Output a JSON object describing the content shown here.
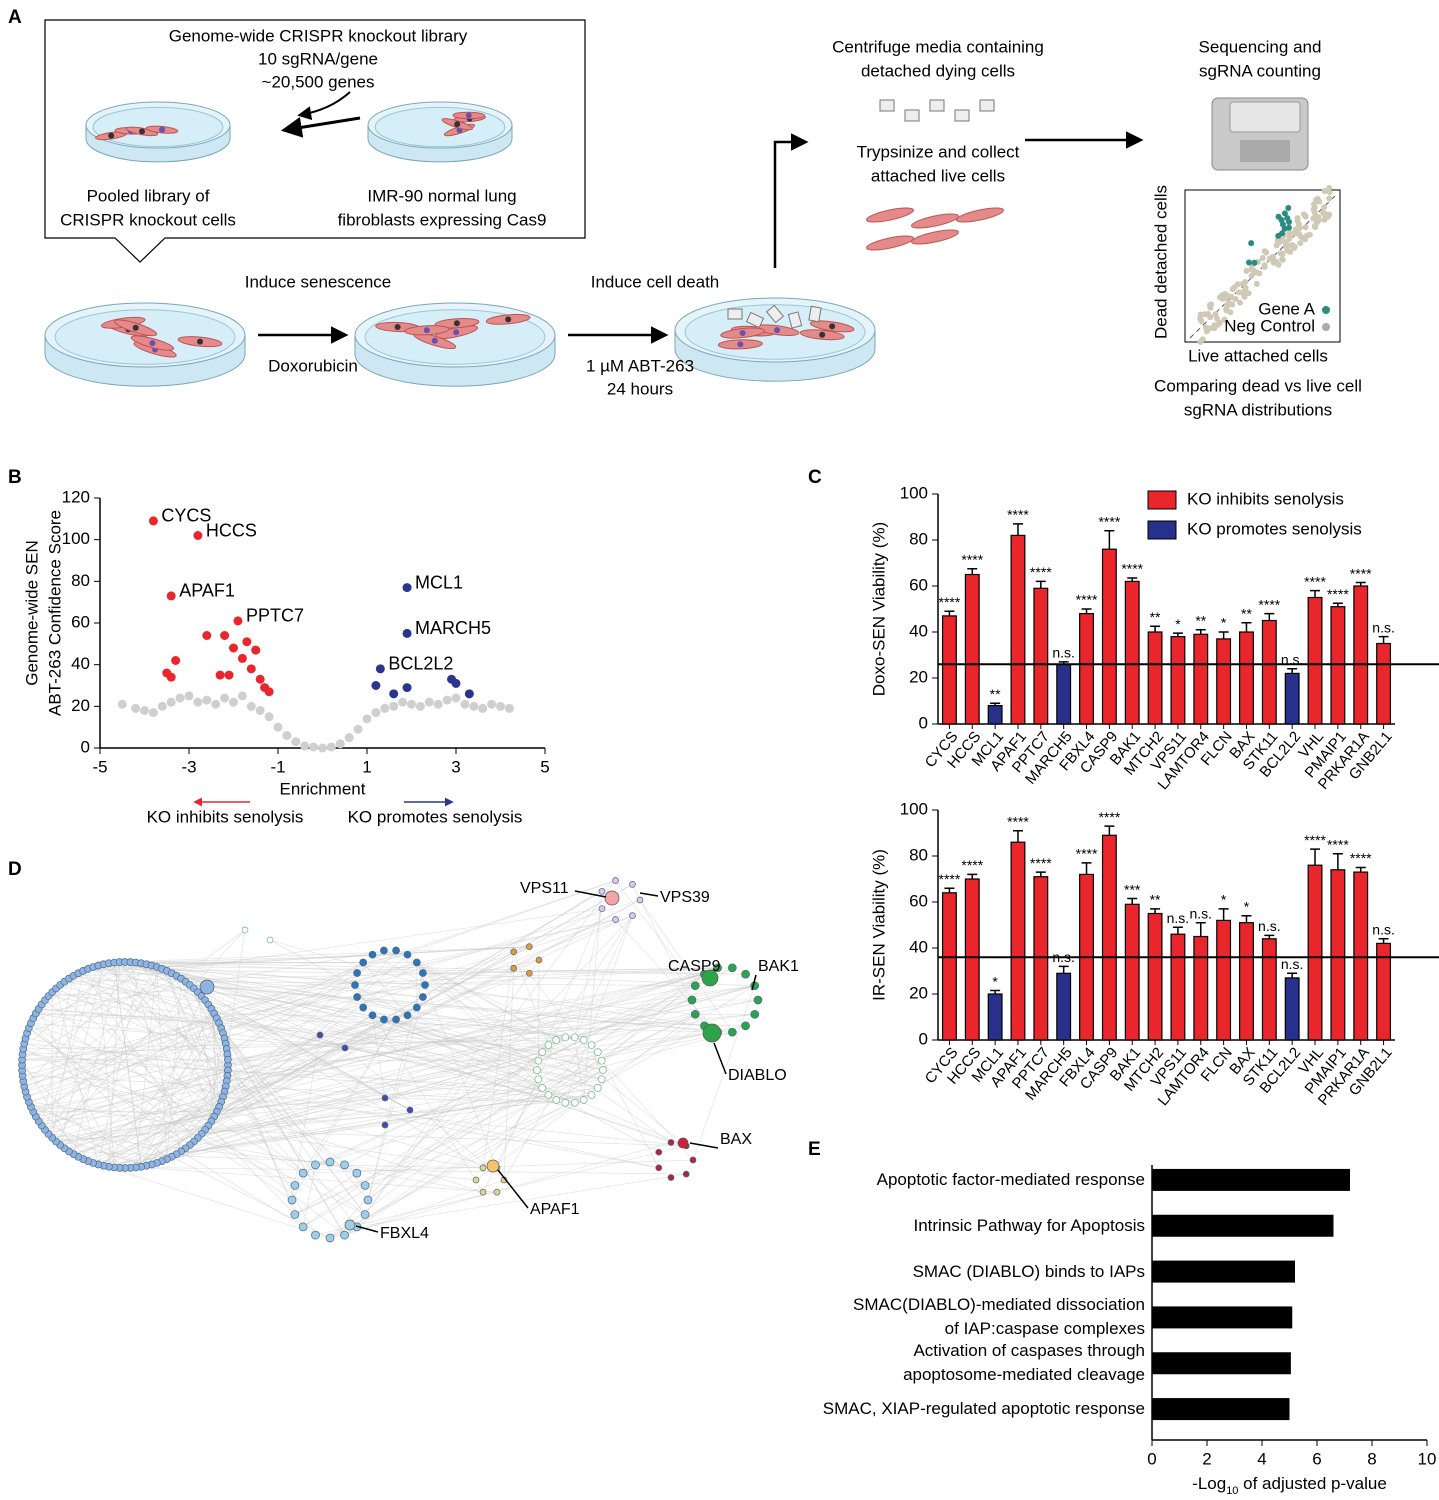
{
  "panel_labels": [
    "A",
    "B",
    "C",
    "D",
    "E"
  ],
  "panel_a": {
    "library": [
      "Genome-wide CRISPR knockout library",
      "10 sgRNA/gene",
      "~20,500 genes"
    ],
    "pooled": [
      "Pooled library of",
      "CRISPR knockout cells"
    ],
    "imr90": [
      "IMR-90 normal lung",
      "fibroblasts expressing Cas9"
    ],
    "induce_senescence": "Induce senescence",
    "doxorubicin": "Doxorubicin",
    "induce_death": "Induce cell death",
    "abt": [
      "1 µM ABT-263",
      "24 hours"
    ],
    "centrifuge": [
      "Centrifuge media containing",
      "detached dying cells"
    ],
    "trypsinize": [
      "Trypsinize and collect",
      "attached live cells"
    ],
    "sequencing": [
      "Sequencing and",
      "sgRNA counting"
    ],
    "mini_legend": [
      "Gene A",
      "Neg Control"
    ],
    "mini_axes": [
      "Live attached cells",
      "Dead detached cells"
    ],
    "comparing": [
      "Comparing dead vs live cell",
      "sgRNA distributions"
    ]
  },
  "chart_data": [
    {
      "type": "scatter",
      "xlabel": "Enrichment",
      "ylabel": [
        "Genome-wide SEN",
        "ABT-263 Confidence Score"
      ],
      "xlim": [
        -5,
        5
      ],
      "xticks": [
        -5,
        -3,
        -1,
        1,
        3,
        5
      ],
      "ylim": [
        0,
        120
      ],
      "yticks": [
        0,
        20,
        40,
        60,
        80,
        100,
        120
      ],
      "annotations": [
        {
          "text": "KO inhibits senolysis",
          "color": "#e8262b"
        },
        {
          "text": "KO promotes senolysis",
          "color": "#2b3590"
        }
      ],
      "series": [
        {
          "color": "#cfcfcf",
          "x": [
            -4.5,
            -4.2,
            -4.0,
            -3.8,
            -3.6,
            -3.4,
            -3.2,
            -3.0,
            -2.8,
            -2.6,
            -2.4,
            -2.2,
            -2.0,
            -1.8,
            -1.6,
            -1.4,
            -1.2,
            -1.0,
            -0.8,
            -0.6,
            -0.4,
            -0.2,
            0,
            0.2,
            0.4,
            0.6,
            0.8,
            1.0,
            1.2,
            1.4,
            1.6,
            1.8,
            2.0,
            2.2,
            2.4,
            2.6,
            2.8,
            3.0,
            3.2,
            3.4,
            3.6,
            3.8,
            4.0,
            4.2
          ],
          "y": [
            21,
            19,
            18,
            17,
            20,
            22,
            24,
            25,
            22,
            23,
            21,
            24,
            22,
            25,
            20,
            18,
            15,
            10,
            6,
            3,
            1,
            0.5,
            0,
            0.5,
            2,
            5,
            9,
            14,
            17,
            19,
            20,
            22,
            21,
            20,
            22,
            21,
            23,
            24,
            21,
            20,
            19,
            21,
            20,
            19
          ]
        },
        {
          "color": "#e8262b",
          "x": [
            -3.8,
            -2.8,
            -3.4,
            -1.9,
            -2.6,
            -2.2,
            -3.3,
            -3.5,
            -3.4,
            -2.0,
            -1.7,
            -1.8,
            -1.5,
            -1.6,
            -2.3,
            -2.1,
            -1.4,
            -1.3,
            -1.2
          ],
          "y": [
            109,
            102,
            73,
            61,
            54,
            54,
            42,
            36,
            34,
            48,
            51,
            43,
            47,
            38,
            35,
            35,
            33,
            29,
            27
          ],
          "labels": [
            "CYCS",
            "HCCS",
            "APAF1",
            "PPTC7",
            null,
            null,
            null,
            null,
            null,
            null,
            null,
            null,
            null,
            null,
            null,
            null,
            null,
            null,
            null
          ]
        },
        {
          "color": "#2b3590",
          "x": [
            1.9,
            1.9,
            1.3,
            1.2,
            1.6,
            1.9,
            2.9,
            3.0,
            3.3
          ],
          "y": [
            77,
            55,
            38,
            30,
            26,
            29,
            33,
            31,
            26
          ],
          "labels": [
            "MCL1",
            "MARCH5",
            "BCL2L2",
            null,
            null,
            null,
            null,
            null,
            null
          ]
        }
      ]
    },
    {
      "type": "bar",
      "ylabel": "Doxo-SEN Viability (%)",
      "ylim": [
        0,
        100
      ],
      "yticks": [
        0,
        20,
        40,
        60,
        80,
        100
      ],
      "reference_line": 26,
      "categories": [
        "CYCS",
        "HCCS",
        "MCL1",
        "APAF1",
        "PPTC7",
        "MARCH5",
        "FBXL4",
        "CASP9",
        "BAK1",
        "MTCH2",
        "VPS11",
        "LAMTOR4",
        "FLCN",
        "BAX",
        "STK11",
        "BCL2L2",
        "VHL",
        "PMAIP1",
        "PRKAR1A",
        "GNB2L1"
      ],
      "significance": [
        "****",
        "****",
        "**",
        "****",
        "****",
        "n.s.",
        "****",
        "****",
        "****",
        "**",
        "*",
        "**",
        "*",
        "**",
        "****",
        "n.s.",
        "****",
        "****",
        "****",
        "n.s."
      ],
      "series": [
        {
          "name": "KO inhibits senolysis",
          "color": "#e8262b",
          "values": [
            47,
            65,
            null,
            82,
            59,
            null,
            48,
            76,
            62,
            40,
            38,
            39,
            37,
            40,
            45,
            null,
            55,
            51,
            60,
            35
          ],
          "errors": [
            2,
            2.5,
            null,
            5,
            3,
            null,
            2,
            8,
            1.5,
            2.5,
            1.5,
            2,
            3,
            4,
            3,
            null,
            3,
            1.5,
            1.5,
            3
          ]
        },
        {
          "name": "KO promotes senolysis",
          "color": "#27318b",
          "values": [
            null,
            null,
            8,
            null,
            null,
            26,
            null,
            null,
            null,
            null,
            null,
            null,
            null,
            null,
            null,
            22,
            null,
            null,
            null,
            null
          ],
          "errors": [
            null,
            null,
            1,
            null,
            null,
            1,
            null,
            null,
            null,
            null,
            null,
            null,
            null,
            null,
            null,
            2,
            null,
            null,
            null,
            null
          ]
        }
      ]
    },
    {
      "type": "bar",
      "ylabel": "IR-SEN Viability (%)",
      "ylim": [
        0,
        100
      ],
      "yticks": [
        0,
        20,
        40,
        60,
        80,
        100
      ],
      "reference_line": 36,
      "categories": [
        "CYCS",
        "HCCS",
        "MCL1",
        "APAF1",
        "PPTC7",
        "MARCH5",
        "FBXL4",
        "CASP9",
        "BAK1",
        "MTCH2",
        "VPS11",
        "LAMTOR4",
        "FLCN",
        "BAX",
        "STK11",
        "BCL2L2",
        "VHL",
        "PMAIP1",
        "PRKAR1A",
        "GNB2L1"
      ],
      "significance": [
        "****",
        "****",
        "*",
        "****",
        "****",
        "n.s.",
        "****",
        "****",
        "***",
        "**",
        "n.s.",
        "n.s.",
        "*",
        "*",
        "n.s.",
        "n.s.",
        "****",
        "****",
        "****",
        "n.s."
      ],
      "series": [
        {
          "color": "#e8262b",
          "values": [
            64,
            70,
            null,
            86,
            71,
            null,
            72,
            89,
            59,
            55,
            46,
            45,
            52,
            51,
            44,
            null,
            76,
            74,
            73,
            42
          ],
          "errors": [
            2,
            2,
            null,
            5,
            2,
            null,
            5,
            4,
            2.5,
            2,
            3,
            6,
            5,
            3,
            1.5,
            null,
            7,
            7,
            2,
            2
          ]
        },
        {
          "color": "#27318b",
          "values": [
            null,
            null,
            20,
            null,
            null,
            29,
            null,
            null,
            null,
            null,
            null,
            null,
            null,
            null,
            null,
            27,
            null,
            null,
            null,
            null
          ],
          "errors": [
            null,
            null,
            1.5,
            null,
            null,
            3,
            null,
            null,
            null,
            null,
            null,
            null,
            null,
            null,
            null,
            2,
            null,
            null,
            null,
            null
          ]
        }
      ]
    },
    {
      "type": "barh",
      "color": "#000000",
      "xlabel": [
        "-Log",
        "10",
        " of adjusted p-value"
      ],
      "xlim": [
        0,
        10
      ],
      "xticks": [
        0,
        2,
        4,
        6,
        8,
        10
      ],
      "categories": [
        "Apoptotic factor-mediated response",
        "Intrinsic Pathway for Apoptosis",
        "SMAC (DIABLO) binds to IAPs",
        "SMAC(DIABLO)-mediated dissociation\nof IAP:caspase complexes",
        "Activation of caspases through\napoptosome-mediated cleavage",
        "SMAC, XIAP-regulated apoptotic response"
      ],
      "values": [
        7.2,
        6.6,
        5.2,
        5.1,
        5.05,
        5.0
      ]
    }
  ],
  "panel_d": {
    "labels": [
      "VPS11",
      "VPS39",
      "CASP9",
      "BAK1",
      "DIABLO",
      "BAX",
      "APAF1",
      "FBXL4"
    ]
  }
}
